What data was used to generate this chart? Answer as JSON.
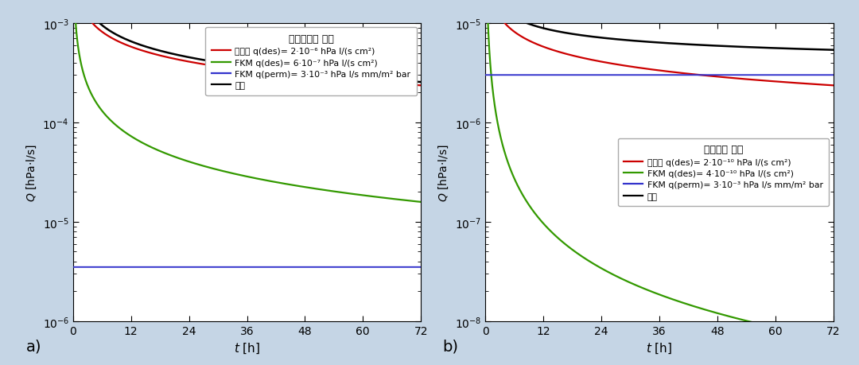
{
  "background_color": "#c5d5e5",
  "fig_width": 10.8,
  "fig_height": 4.6,
  "panel_a": {
    "xlim": [
      0,
      72
    ],
    "ylim": [
      1e-06,
      0.001
    ],
    "xticks": [
      0,
      12,
      24,
      36,
      48,
      60,
      72
    ],
    "steel_A": 0.002,
    "steel_alpha": 0.5,
    "fkm_des_A": 0.0006,
    "fkm_des_alpha": 0.85,
    "fkm_perm": 3.5e-06,
    "legend_title": "样品室：不 加热",
    "legend_items": [
      {
        "color": "#cc0000",
        "label": "不锈鑄 q(des)= 2·10⁻⁶ hPa l/(s cm²)"
      },
      {
        "color": "#339900",
        "label": "FKM q(des)= 6·10⁻⁷ hPa l/(s cm²)"
      },
      {
        "color": "#3333cc",
        "label": "FKM q(perm)= 3·10⁻³ hPa l/s mm/m² bar"
      },
      {
        "color": "#000000",
        "label": "共计"
      }
    ]
  },
  "panel_b": {
    "xlim": [
      0,
      72
    ],
    "ylim": [
      1e-08,
      1e-05
    ],
    "xticks": [
      0,
      12,
      24,
      36,
      48,
      60,
      72
    ],
    "steel_A": 2e-05,
    "steel_alpha": 0.5,
    "fkm_des_A": 4e-06,
    "fkm_des_alpha": 1.5,
    "fkm_perm": 3e-06,
    "legend_title": "样品室： 烧烤",
    "legend_items": [
      {
        "color": "#cc0000",
        "label": "不锈鑄 q(des)= 2·10⁻¹⁰ hPa l/(s cm²)"
      },
      {
        "color": "#339900",
        "label": "FKM q(des)= 4·10⁻¹⁰ hPa l/(s cm²)"
      },
      {
        "color": "#3333cc",
        "label": "FKM q(perm)= 3·10⁻³ hPa l/s mm/m² bar"
      },
      {
        "color": "#000000",
        "label": "共计"
      }
    ]
  }
}
